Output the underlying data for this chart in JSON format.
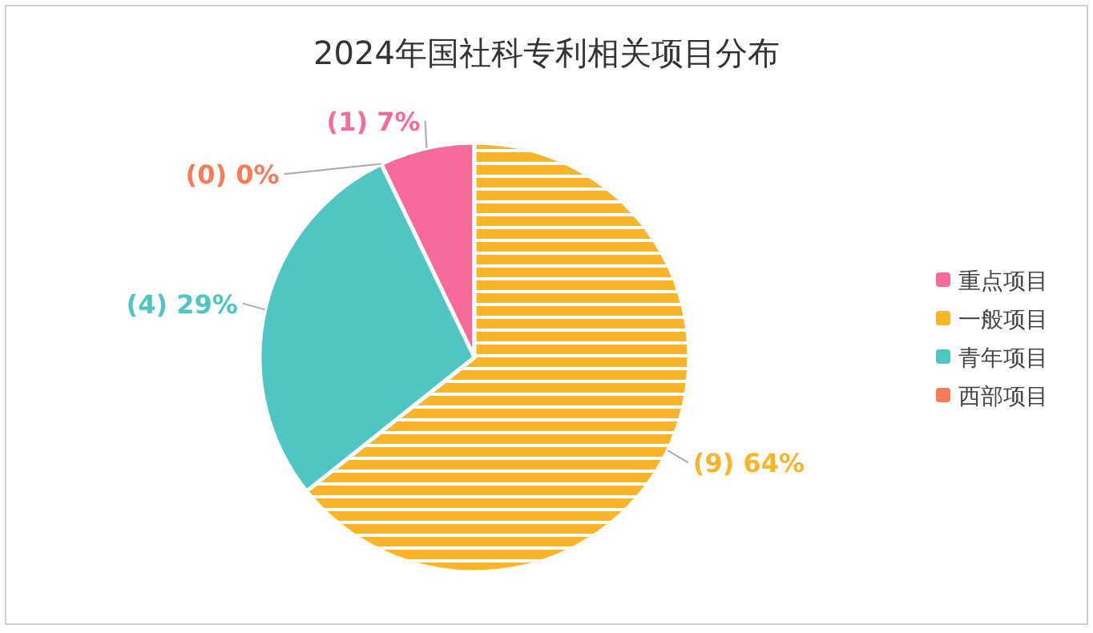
{
  "chart_data": {
    "type": "pie",
    "title": "2024年国社科专利相关项目分布",
    "categories": [
      "重点项目",
      "一般项目",
      "青年项目",
      "西部项目"
    ],
    "values": [
      1,
      9,
      4,
      0
    ],
    "value_labels": [
      "(1) 7%",
      "(9) 64%",
      "(4) 29%",
      "(0) 0%"
    ],
    "colors": [
      "#f76b9c",
      "#f7b52c",
      "#4fc6c1",
      "#f47c5a"
    ],
    "legend": "right"
  }
}
